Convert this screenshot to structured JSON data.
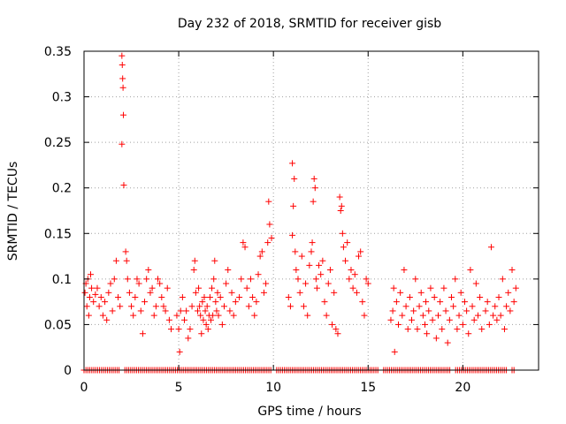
{
  "chart_data": {
    "type": "scatter",
    "title": "Day 232 of 2018, SRMTID for receiver gisb",
    "xlabel": "GPS time / hours",
    "ylabel": "SRMTID / TECUs",
    "xlim": [
      0,
      24
    ],
    "ylim": [
      0,
      0.35
    ],
    "xticks": [
      0,
      5,
      10,
      15,
      20
    ],
    "xtick_labels": [
      "0",
      "5",
      "10",
      "15",
      "20"
    ],
    "yticks": [
      0,
      0.05,
      0.1,
      0.15,
      0.2,
      0.25,
      0.3,
      0.35
    ],
    "ytick_labels": [
      "0",
      "0.05",
      "0.1",
      "0.15",
      "0.2",
      "0.25",
      "0.3",
      "0.35"
    ],
    "grid": true,
    "marker": "+",
    "color": "#ff0000",
    "series": [
      {
        "name": "SRMTID",
        "points": [
          [
            0.05,
            0.085
          ],
          [
            0.1,
            0.095
          ],
          [
            0.15,
            0.07
          ],
          [
            0.2,
            0.1
          ],
          [
            0.25,
            0.06
          ],
          [
            0.3,
            0.08
          ],
          [
            0.35,
            0.105
          ],
          [
            0.4,
            0.09
          ],
          [
            0.5,
            0.075
          ],
          [
            0.6,
            0.083
          ],
          [
            0.7,
            0.09
          ],
          [
            0.8,
            0.07
          ],
          [
            0.9,
            0.08
          ],
          [
            1.0,
            0.06
          ],
          [
            1.1,
            0.075
          ],
          [
            1.2,
            0.055
          ],
          [
            1.3,
            0.085
          ],
          [
            1.4,
            0.095
          ],
          [
            1.5,
            0.065
          ],
          [
            1.6,
            0.1
          ],
          [
            1.7,
            0.12
          ],
          [
            1.8,
            0.08
          ],
          [
            1.9,
            0.07
          ],
          [
            2.0,
            0.345
          ],
          [
            2.02,
            0.335
          ],
          [
            2.04,
            0.32
          ],
          [
            2.06,
            0.31
          ],
          [
            2.08,
            0.28
          ],
          [
            2.0,
            0.248
          ],
          [
            2.1,
            0.203
          ],
          [
            2.2,
            0.13
          ],
          [
            2.25,
            0.12
          ],
          [
            2.3,
            0.1
          ],
          [
            2.4,
            0.085
          ],
          [
            2.5,
            0.07
          ],
          [
            2.6,
            0.06
          ],
          [
            2.7,
            0.08
          ],
          [
            2.8,
            0.1
          ],
          [
            2.9,
            0.095
          ],
          [
            3.0,
            0.065
          ],
          [
            3.1,
            0.04
          ],
          [
            3.2,
            0.075
          ],
          [
            3.3,
            0.1
          ],
          [
            3.4,
            0.11
          ],
          [
            3.5,
            0.085
          ],
          [
            3.6,
            0.09
          ],
          [
            3.7,
            0.06
          ],
          [
            3.8,
            0.07
          ],
          [
            3.9,
            0.1
          ],
          [
            4.0,
            0.095
          ],
          [
            4.1,
            0.08
          ],
          [
            4.2,
            0.07
          ],
          [
            4.3,
            0.065
          ],
          [
            4.4,
            0.09
          ],
          [
            4.5,
            0.055
          ],
          [
            4.6,
            0.045
          ],
          [
            4.9,
            0.06
          ],
          [
            5.0,
            0.045
          ],
          [
            5.05,
            0.02
          ],
          [
            5.1,
            0.065
          ],
          [
            5.2,
            0.08
          ],
          [
            5.3,
            0.055
          ],
          [
            5.4,
            0.065
          ],
          [
            5.5,
            0.035
          ],
          [
            5.6,
            0.045
          ],
          [
            5.7,
            0.07
          ],
          [
            5.8,
            0.11
          ],
          [
            5.85,
            0.12
          ],
          [
            5.9,
            0.085
          ],
          [
            6.0,
            0.065
          ],
          [
            6.05,
            0.09
          ],
          [
            6.1,
            0.07
          ],
          [
            6.15,
            0.06
          ],
          [
            6.2,
            0.04
          ],
          [
            6.25,
            0.075
          ],
          [
            6.3,
            0.055
          ],
          [
            6.35,
            0.08
          ],
          [
            6.4,
            0.065
          ],
          [
            6.45,
            0.05
          ],
          [
            6.5,
            0.07
          ],
          [
            6.55,
            0.045
          ],
          [
            6.6,
            0.06
          ],
          [
            6.65,
            0.08
          ],
          [
            6.7,
            0.055
          ],
          [
            6.75,
            0.09
          ],
          [
            6.8,
            0.06
          ],
          [
            6.85,
            0.1
          ],
          [
            6.9,
            0.12
          ],
          [
            6.95,
            0.075
          ],
          [
            7.0,
            0.065
          ],
          [
            7.05,
            0.085
          ],
          [
            7.1,
            0.06
          ],
          [
            7.2,
            0.08
          ],
          [
            7.3,
            0.05
          ],
          [
            7.4,
            0.07
          ],
          [
            7.5,
            0.095
          ],
          [
            7.6,
            0.11
          ],
          [
            7.7,
            0.065
          ],
          [
            7.8,
            0.085
          ],
          [
            7.9,
            0.06
          ],
          [
            8.0,
            0.075
          ],
          [
            8.2,
            0.08
          ],
          [
            8.3,
            0.1
          ],
          [
            8.4,
            0.14
          ],
          [
            8.5,
            0.135
          ],
          [
            8.6,
            0.09
          ],
          [
            8.7,
            0.07
          ],
          [
            8.8,
            0.1
          ],
          [
            8.9,
            0.08
          ],
          [
            9.0,
            0.06
          ],
          [
            9.1,
            0.075
          ],
          [
            9.2,
            0.105
          ],
          [
            9.3,
            0.125
          ],
          [
            9.4,
            0.13
          ],
          [
            9.5,
            0.085
          ],
          [
            9.6,
            0.095
          ],
          [
            9.7,
            0.14
          ],
          [
            9.75,
            0.185
          ],
          [
            9.8,
            0.16
          ],
          [
            9.9,
            0.145
          ],
          [
            10.8,
            0.08
          ],
          [
            10.9,
            0.07
          ],
          [
            11.0,
            0.148
          ],
          [
            11.05,
            0.18
          ],
          [
            11.1,
            0.21
          ],
          [
            11.0,
            0.227
          ],
          [
            11.15,
            0.13
          ],
          [
            11.2,
            0.11
          ],
          [
            11.3,
            0.1
          ],
          [
            11.4,
            0.085
          ],
          [
            11.5,
            0.125
          ],
          [
            11.6,
            0.07
          ],
          [
            11.7,
            0.095
          ],
          [
            11.8,
            0.06
          ],
          [
            11.9,
            0.115
          ],
          [
            12.0,
            0.13
          ],
          [
            12.05,
            0.14
          ],
          [
            12.1,
            0.185
          ],
          [
            12.15,
            0.21
          ],
          [
            12.2,
            0.2
          ],
          [
            12.25,
            0.1
          ],
          [
            12.3,
            0.09
          ],
          [
            12.4,
            0.115
          ],
          [
            12.5,
            0.105
          ],
          [
            12.6,
            0.12
          ],
          [
            12.7,
            0.075
          ],
          [
            12.8,
            0.06
          ],
          [
            12.9,
            0.095
          ],
          [
            13.0,
            0.11
          ],
          [
            13.1,
            0.05
          ],
          [
            13.2,
            0.085
          ],
          [
            13.3,
            0.045
          ],
          [
            13.4,
            0.04
          ],
          [
            13.5,
            0.19
          ],
          [
            13.55,
            0.175
          ],
          [
            13.6,
            0.18
          ],
          [
            13.65,
            0.15
          ],
          [
            13.7,
            0.135
          ],
          [
            13.8,
            0.12
          ],
          [
            13.9,
            0.14
          ],
          [
            14.0,
            0.1
          ],
          [
            14.1,
            0.11
          ],
          [
            14.2,
            0.09
          ],
          [
            14.3,
            0.105
          ],
          [
            14.4,
            0.085
          ],
          [
            14.5,
            0.125
          ],
          [
            14.6,
            0.13
          ],
          [
            14.7,
            0.075
          ],
          [
            14.8,
            0.06
          ],
          [
            14.9,
            0.1
          ],
          [
            15.0,
            0.095
          ],
          [
            16.2,
            0.055
          ],
          [
            16.3,
            0.065
          ],
          [
            16.35,
            0.09
          ],
          [
            16.4,
            0.02
          ],
          [
            16.5,
            0.075
          ],
          [
            16.6,
            0.05
          ],
          [
            16.7,
            0.085
          ],
          [
            16.8,
            0.06
          ],
          [
            16.9,
            0.11
          ],
          [
            17.0,
            0.07
          ],
          [
            17.1,
            0.045
          ],
          [
            17.2,
            0.08
          ],
          [
            17.3,
            0.055
          ],
          [
            17.4,
            0.065
          ],
          [
            17.5,
            0.1
          ],
          [
            17.6,
            0.045
          ],
          [
            17.7,
            0.07
          ],
          [
            17.8,
            0.085
          ],
          [
            17.9,
            0.06
          ],
          [
            18.0,
            0.05
          ],
          [
            18.05,
            0.075
          ],
          [
            18.1,
            0.04
          ],
          [
            18.2,
            0.065
          ],
          [
            18.3,
            0.09
          ],
          [
            18.4,
            0.055
          ],
          [
            18.5,
            0.08
          ],
          [
            18.6,
            0.035
          ],
          [
            18.7,
            0.06
          ],
          [
            18.8,
            0.075
          ],
          [
            18.9,
            0.045
          ],
          [
            19.0,
            0.09
          ],
          [
            19.1,
            0.065
          ],
          [
            19.2,
            0.03
          ],
          [
            19.3,
            0.055
          ],
          [
            19.4,
            0.08
          ],
          [
            19.5,
            0.07
          ],
          [
            19.6,
            0.1
          ],
          [
            19.7,
            0.045
          ],
          [
            19.8,
            0.06
          ],
          [
            19.9,
            0.085
          ],
          [
            20.0,
            0.05
          ],
          [
            20.1,
            0.075
          ],
          [
            20.2,
            0.065
          ],
          [
            20.3,
            0.04
          ],
          [
            20.4,
            0.11
          ],
          [
            20.5,
            0.07
          ],
          [
            20.6,
            0.055
          ],
          [
            20.7,
            0.095
          ],
          [
            20.8,
            0.06
          ],
          [
            20.9,
            0.08
          ],
          [
            21.0,
            0.045
          ],
          [
            21.2,
            0.065
          ],
          [
            21.3,
            0.075
          ],
          [
            21.4,
            0.05
          ],
          [
            21.5,
            0.135
          ],
          [
            21.6,
            0.06
          ],
          [
            21.7,
            0.07
          ],
          [
            21.8,
            0.055
          ],
          [
            21.9,
            0.08
          ],
          [
            22.0,
            0.06
          ],
          [
            22.1,
            0.1
          ],
          [
            22.2,
            0.045
          ],
          [
            22.3,
            0.07
          ],
          [
            22.4,
            0.085
          ],
          [
            22.5,
            0.065
          ],
          [
            22.6,
            0.11
          ],
          [
            22.7,
            0.075
          ],
          [
            22.8,
            0.09
          ]
        ]
      },
      {
        "name": "zero baseline",
        "x_range": [
          0,
          22.8
        ],
        "y": 0,
        "gaps": [
          [
            1.85,
            2.15
          ],
          [
            9.95,
            10.15
          ],
          [
            15.6,
            15.8
          ],
          [
            19.4,
            19.6
          ],
          [
            22.3,
            22.5
          ]
        ]
      }
    ]
  }
}
